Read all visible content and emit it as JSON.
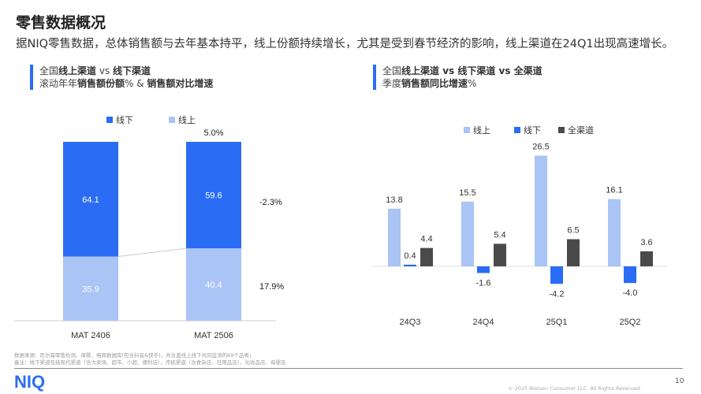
{
  "title": "零售数据概况",
  "subtitle": "据NIQ零售数据，总体销售额与去年基本持平，线上份额持续增长，尤其是受到春节经济的影响，线上渠道在24Q1出现高速增长。",
  "left_section": {
    "line1_a": "全国",
    "line1_b": "线上渠道",
    "line1_c": " vs ",
    "line1_d": "线下渠道",
    "line2_a": "滚动年年",
    "line2_b": "销售额份额",
    "line2_c": "% & ",
    "line2_d": "销售额对比增速"
  },
  "right_section": {
    "line1_a": "全国",
    "line1_b": "线上渠道 vs 线下渠道 vs 全渠道",
    "line2_a": "季度",
    "line2_b": "销售额同比增速",
    "line2_c": "%"
  },
  "colors": {
    "offline": "#2a6df4",
    "online": "#a9c4f5",
    "total": "#4a4a4a"
  },
  "chart_data": [
    {
      "type": "bar",
      "stacked": true,
      "title": "",
      "legend": [
        "线下",
        "线上"
      ],
      "legend_position": "top",
      "categories": [
        "MAT 2406",
        "MAT 2506"
      ],
      "series": [
        {
          "name": "线下",
          "values": [
            64.1,
            59.6
          ]
        },
        {
          "name": "线上",
          "values": [
            35.9,
            40.4
          ]
        }
      ],
      "growth_labels": {
        "total": "5.0%",
        "offline": "-2.3%",
        "online": "17.9%"
      },
      "ylim": [
        0,
        100
      ]
    },
    {
      "type": "bar",
      "title": "",
      "legend": [
        "线上",
        "线下",
        "全渠道"
      ],
      "legend_position": "top",
      "categories": [
        "24Q3",
        "24Q4",
        "25Q1",
        "25Q2"
      ],
      "series": [
        {
          "name": "线上",
          "values": [
            13.8,
            15.5,
            26.5,
            16.1
          ]
        },
        {
          "name": "线下",
          "values": [
            0.4,
            -1.6,
            -4.2,
            -4.0
          ]
        },
        {
          "name": "全渠道",
          "values": [
            4.4,
            5.4,
            6.5,
            3.6
          ]
        }
      ]
    }
  ],
  "footnote": {
    "source": "数据来源：尼尔森零售检测、母婴、电商数据库(包含抖音&快手)，共含盖线上线下共同监测的69个品类；",
    "note": "备注：线下渠道包括现代渠道（含大卖场、超市、小超、便利店），传统渠道（含食杂店、日用品店），化妆品店、母婴店"
  },
  "logo": "NIQ",
  "page_number": "10",
  "copyright": "© 2025 Nielsen Consumer LLC. All Rights Reserved."
}
